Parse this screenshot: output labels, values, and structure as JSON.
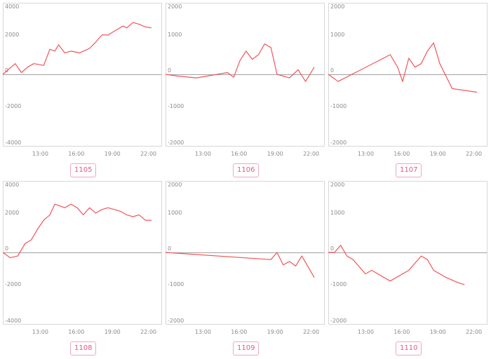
{
  "chart_data": [
    {
      "type": "line",
      "label": "1105",
      "ylim": [
        -4000,
        4000
      ],
      "yticks": [
        4000,
        2000,
        0,
        -2000,
        -4000
      ],
      "xticks": [
        "13:00",
        "16:00",
        "19:00",
        "22:00"
      ],
      "series_color": "#f2545b",
      "x": [
        0.0,
        1.0,
        1.5,
        2.0,
        2.5,
        3.3,
        3.8,
        4.2,
        4.5,
        5.0,
        5.5,
        6.2,
        6.5,
        7.0,
        7.5,
        8.0,
        8.5,
        9.2,
        9.7,
        10.0,
        10.5,
        11.0,
        11.5,
        12.0
      ],
      "values": [
        0,
        600,
        100,
        400,
        600,
        500,
        1400,
        1300,
        1650,
        1200,
        1300,
        1200,
        1300,
        1450,
        1800,
        2200,
        2200,
        2500,
        2700,
        2600,
        2900,
        2800,
        2650,
        2600
      ]
    },
    {
      "type": "line",
      "label": "1106",
      "ylim": [
        -2000,
        2000
      ],
      "yticks": [
        2000,
        1000,
        0,
        -1000,
        -2000
      ],
      "xticks": [
        "13:00",
        "16:00",
        "19:00",
        "22:00"
      ],
      "series_color": "#f2545b",
      "x": [
        0.0,
        1.0,
        2.5,
        5.0,
        5.5,
        6.0,
        6.5,
        7.0,
        7.5,
        8.0,
        8.5,
        9.0,
        10.0,
        10.7,
        11.3,
        12.0
      ],
      "values": [
        0,
        -50,
        -100,
        50,
        -80,
        380,
        650,
        420,
        550,
        850,
        750,
        0,
        -100,
        130,
        -200,
        200
      ]
    },
    {
      "type": "line",
      "label": "1107",
      "ylim": [
        -2000,
        2000
      ],
      "yticks": [
        2000,
        1000,
        0,
        -1000,
        -2000
      ],
      "xticks": [
        "13:00",
        "16:00",
        "19:00",
        "22:00"
      ],
      "series_color": "#f2545b",
      "x": [
        0.0,
        0.8,
        5.0,
        5.6,
        6.0,
        6.5,
        7.0,
        7.5,
        8.0,
        8.5,
        9.0,
        10.0,
        12.0
      ],
      "values": [
        0,
        -200,
        550,
        200,
        -200,
        450,
        200,
        300,
        650,
        880,
        300,
        -400,
        -500
      ]
    },
    {
      "type": "line",
      "label": "1108",
      "ylim": [
        -4000,
        4000
      ],
      "yticks": [
        4000,
        2000,
        0,
        -2000,
        -4000
      ],
      "xticks": [
        "13:00",
        "16:00",
        "19:00",
        "22:00"
      ],
      "series_color": "#f2545b",
      "x": [
        0.0,
        0.6,
        1.2,
        1.8,
        2.3,
        2.8,
        3.3,
        3.8,
        4.2,
        5.0,
        5.5,
        6.0,
        6.5,
        7.0,
        7.5,
        8.0,
        8.5,
        9.0,
        9.5,
        10.0,
        10.5,
        11.0,
        11.5,
        12.0
      ],
      "values": [
        0,
        -300,
        -200,
        500,
        700,
        1300,
        1800,
        2100,
        2700,
        2500,
        2700,
        2500,
        2100,
        2500,
        2200,
        2400,
        2500,
        2400,
        2300,
        2100,
        2000,
        2100,
        1800,
        1800
      ]
    },
    {
      "type": "line",
      "label": "1109",
      "ylim": [
        -2000,
        2000
      ],
      "yticks": [
        2000,
        1000,
        0,
        -1000,
        -2000
      ],
      "xticks": [
        "13:00",
        "16:00",
        "19:00",
        "22:00"
      ],
      "series_color": "#f2545b",
      "x": [
        0.0,
        8.5,
        9.0,
        9.5,
        10.0,
        10.5,
        11.0,
        12.0
      ],
      "values": [
        0,
        -200,
        0,
        -350,
        -250,
        -380,
        -100,
        -700
      ]
    },
    {
      "type": "line",
      "label": "1110",
      "ylim": [
        -2000,
        2000
      ],
      "yticks": [
        2000,
        1000,
        0,
        -1000,
        -2000
      ],
      "xticks": [
        "13:00",
        "16:00",
        "19:00",
        "22:00"
      ],
      "series_color": "#f2545b",
      "x": [
        0.0,
        0.5,
        1.0,
        1.5,
        2.0,
        3.0,
        3.5,
        5.0,
        6.5,
        7.5,
        8.0,
        8.5,
        9.5,
        10.5,
        11.0
      ],
      "values": [
        0,
        0,
        200,
        -100,
        -200,
        -600,
        -500,
        -800,
        -500,
        -100,
        -200,
        -500,
        -700,
        -850,
        -900
      ]
    }
  ]
}
